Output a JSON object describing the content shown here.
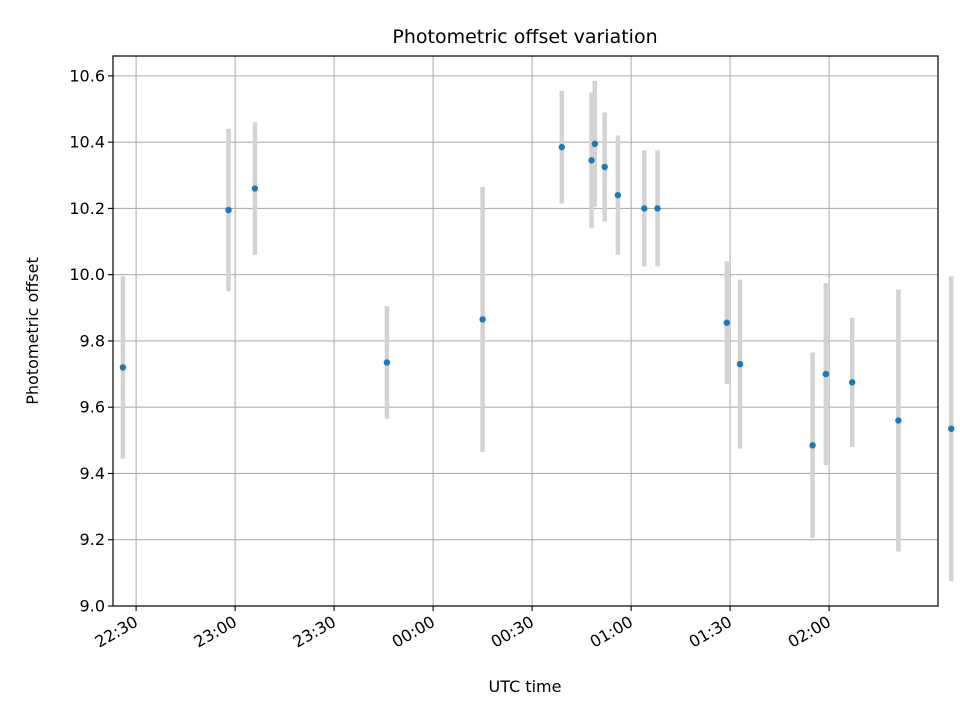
{
  "chart_data": {
    "type": "scatter",
    "title": "Photometric offset variation",
    "xlabel": "UTC time",
    "ylabel": "Photometric offset",
    "ylim": [
      9.0,
      10.66
    ],
    "xlim": [
      "22:23",
      "02:33"
    ],
    "y_ticks": [
      9.0,
      9.2,
      9.4,
      9.6,
      9.8,
      10.0,
      10.2,
      10.4,
      10.6
    ],
    "y_tick_labels": [
      "9.0",
      "9.2",
      "9.4",
      "9.6",
      "9.8",
      "10.0",
      "10.2",
      "10.4",
      "10.6"
    ],
    "x_ticks": [
      "22:30",
      "23:00",
      "23:30",
      "00:00",
      "00:30",
      "01:00",
      "01:30",
      "02:00"
    ],
    "x_tick_labels": [
      "22:30",
      "23:00",
      "23:30",
      "00:00",
      "00:30",
      "01:00",
      "01:30",
      "02:00"
    ],
    "grid": true,
    "error_bars": true,
    "marker_color": "#1f77b4",
    "errorbar_color": "#d3d3d3",
    "points": [
      {
        "x": "22:26",
        "y": 9.72,
        "err": 0.275
      },
      {
        "x": "22:58",
        "y": 10.195,
        "err": 0.245
      },
      {
        "x": "23:06",
        "y": 10.26,
        "err": 0.2
      },
      {
        "x": "23:46",
        "y": 9.735,
        "err": 0.17
      },
      {
        "x": "00:15",
        "y": 9.865,
        "err": 0.4
      },
      {
        "x": "00:39",
        "y": 10.385,
        "err": 0.17
      },
      {
        "x": "00:48",
        "y": 10.345,
        "err": 0.205
      },
      {
        "x": "00:49",
        "y": 10.395,
        "err": 0.19
      },
      {
        "x": "00:52",
        "y": 10.325,
        "err": 0.165
      },
      {
        "x": "00:56",
        "y": 10.24,
        "err": 0.18
      },
      {
        "x": "01:04",
        "y": 10.2,
        "err": 0.175
      },
      {
        "x": "01:08",
        "y": 10.2,
        "err": 0.175
      },
      {
        "x": "01:29",
        "y": 9.855,
        "err": 0.185
      },
      {
        "x": "01:33",
        "y": 9.73,
        "err": 0.255
      },
      {
        "x": "01:55",
        "y": 9.485,
        "err": 0.28
      },
      {
        "x": "01:59",
        "y": 9.7,
        "err": 0.275
      },
      {
        "x": "02:07",
        "y": 9.675,
        "err": 0.195
      },
      {
        "x": "02:21",
        "y": 9.56,
        "err": 0.395
      },
      {
        "x": "02:37",
        "y": 9.535,
        "err": 0.46
      }
    ]
  }
}
